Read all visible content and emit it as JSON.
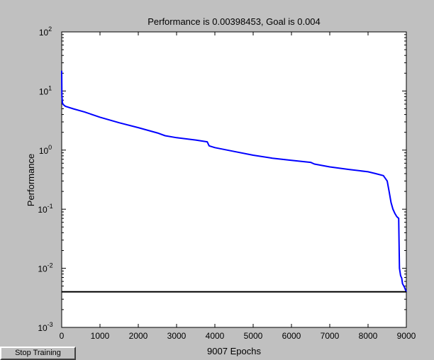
{
  "chart_data": {
    "type": "line",
    "title": "Performance is 0.00398453, Goal is 0.004",
    "xlabel": "9007 Epochs",
    "ylabel": "Performance",
    "xlim": [
      0,
      9000
    ],
    "ylim": [
      0.001,
      100
    ],
    "yscale": "log",
    "x_ticks": [
      "0",
      "1000",
      "2000",
      "3000",
      "4000",
      "5000",
      "6000",
      "7000",
      "8000",
      "9000"
    ],
    "y_ticks": [
      {
        "base": "10",
        "exp": "2"
      },
      {
        "base": "10",
        "exp": "1"
      },
      {
        "base": "10",
        "exp": "0"
      },
      {
        "base": "10",
        "exp": "-1"
      },
      {
        "base": "10",
        "exp": "-2"
      },
      {
        "base": "10",
        "exp": "-3"
      }
    ],
    "grid": false,
    "series": [
      {
        "color": "#0000ff",
        "x": [
          0,
          5,
          20,
          50,
          100,
          300,
          600,
          1000,
          1500,
          2000,
          2500,
          2700,
          3000,
          3500,
          3800,
          3850,
          4000,
          4500,
          5000,
          5500,
          6000,
          6500,
          6600,
          7000,
          7500,
          8000,
          8200,
          8400,
          8500,
          8550,
          8600,
          8650,
          8700,
          8750,
          8800,
          8820,
          8850,
          8880,
          8900,
          8950,
          9000
        ],
        "y": [
          22,
          8,
          6.2,
          5.8,
          5.5,
          5.0,
          4.4,
          3.6,
          2.9,
          2.4,
          1.95,
          1.75,
          1.62,
          1.48,
          1.38,
          1.18,
          1.1,
          0.95,
          0.82,
          0.73,
          0.67,
          0.62,
          0.58,
          0.52,
          0.47,
          0.43,
          0.4,
          0.37,
          0.3,
          0.2,
          0.13,
          0.1,
          0.085,
          0.075,
          0.07,
          0.01,
          0.0075,
          0.0068,
          0.0055,
          0.0048,
          0.00398
        ]
      },
      {
        "color": "#000000",
        "x": [
          0,
          9000
        ],
        "y": [
          0.004,
          0.004
        ]
      }
    ]
  },
  "controls": {
    "stop_label": "Stop Training"
  }
}
